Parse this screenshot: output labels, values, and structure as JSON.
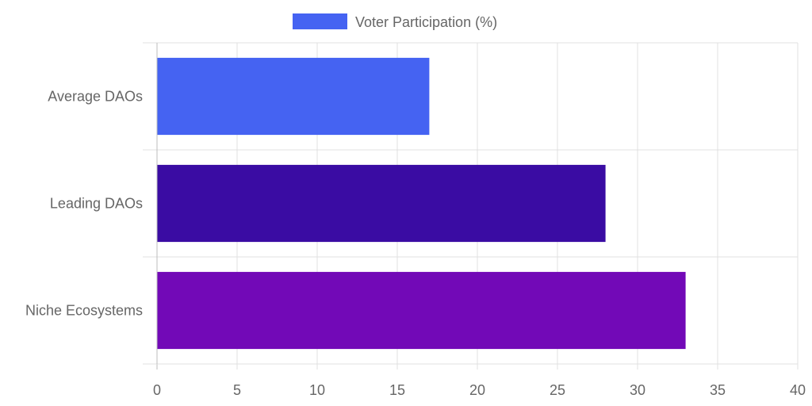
{
  "chart_data": {
    "type": "bar",
    "orientation": "horizontal",
    "categories": [
      "Average DAOs",
      "Leading DAOs",
      "Niche Ecosystems"
    ],
    "series": [
      {
        "name": "Voter Participation (%)",
        "values": [
          17,
          28,
          33
        ],
        "colors": [
          "#4563f2",
          "#3a0ca3",
          "#7209b7"
        ]
      }
    ],
    "legend": {
      "label": "Voter Participation (%)",
      "color": "#4563f2",
      "placement": "top-center"
    },
    "xlim": [
      0,
      40
    ],
    "x_ticks": [
      0,
      5,
      10,
      15,
      20,
      25,
      30,
      35,
      40
    ],
    "grid": true,
    "title": "",
    "xlabel": "",
    "ylabel": ""
  }
}
